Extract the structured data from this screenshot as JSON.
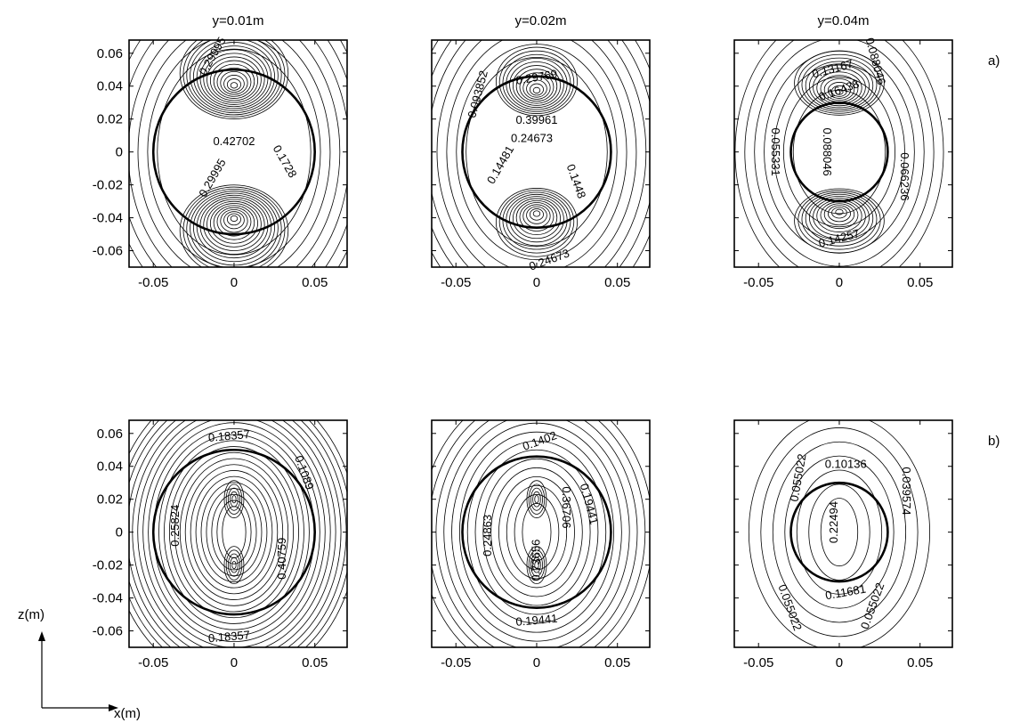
{
  "chart_data": {
    "type": "contour",
    "columns": [
      "y=0.01m",
      "y=0.02m",
      "y=0.04m"
    ],
    "rows": [
      "a)",
      "b)"
    ],
    "xlim": [
      -0.065,
      0.07
    ],
    "ylim": [
      -0.07,
      0.068
    ],
    "xticks": [
      -0.05,
      0,
      0.05
    ],
    "xtick_labels": [
      "-0.05",
      "0",
      "0.05"
    ],
    "yticks": [
      0.06,
      0.04,
      0.02,
      0,
      -0.02,
      -0.04,
      -0.06
    ],
    "ytick_labels": [
      "0.06",
      "0.04",
      "0.02",
      "0",
      "-0.02",
      "-0.04",
      "-0.06"
    ],
    "axis_labels": {
      "x": "x(m)",
      "z": "z(m)"
    },
    "panels": [
      {
        "row": 0,
        "col": 0,
        "circle": {
          "cx": 0,
          "cz": 0,
          "r": 0.05
        },
        "contour_labels": [
          {
            "text": "0.29995",
            "x": -0.013,
            "z": 0.058,
            "angle": -60
          },
          {
            "text": "0.42702",
            "x": 0.0,
            "z": 0.006,
            "angle": 0
          },
          {
            "text": "0.29995",
            "x": -0.013,
            "z": -0.016,
            "angle": -60
          },
          {
            "text": "0.1728",
            "x": 0.031,
            "z": -0.006,
            "angle": 60
          }
        ]
      },
      {
        "row": 0,
        "col": 1,
        "circle": {
          "cx": 0,
          "cz": 0,
          "r": 0.046
        },
        "contour_labels": [
          {
            "text": "0.29769",
            "x": 0.0,
            "z": 0.045,
            "angle": -10
          },
          {
            "text": "0.39961",
            "x": 0.0,
            "z": 0.019,
            "angle": 0
          },
          {
            "text": "0.24673",
            "x": -0.003,
            "z": 0.008,
            "angle": 0
          },
          {
            "text": "0.093852",
            "x": -0.036,
            "z": 0.035,
            "angle": -75
          },
          {
            "text": "0.14481",
            "x": -0.022,
            "z": -0.008,
            "angle": -60
          },
          {
            "text": "0.1448",
            "x": 0.024,
            "z": -0.018,
            "angle": 70
          },
          {
            "text": "0.24673",
            "x": 0.008,
            "z": -0.066,
            "angle": -20
          }
        ]
      },
      {
        "row": 0,
        "col": 2,
        "circle": {
          "cx": 0,
          "cz": 0,
          "r": 0.03
        },
        "contour_labels": [
          {
            "text": "0.13167",
            "x": -0.004,
            "z": 0.05,
            "angle": -15
          },
          {
            "text": "0.16438",
            "x": 0.0,
            "z": 0.037,
            "angle": -20
          },
          {
            "text": "0.088046",
            "x": 0.022,
            "z": 0.055,
            "angle": 75
          },
          {
            "text": "0.055331",
            "x": -0.04,
            "z": 0.0,
            "angle": 90
          },
          {
            "text": "0.088046",
            "x": -0.008,
            "z": 0.0,
            "angle": 90
          },
          {
            "text": "0.066236",
            "x": 0.04,
            "z": -0.015,
            "angle": 90
          },
          {
            "text": "0.14257",
            "x": 0.0,
            "z": -0.053,
            "angle": -15
          }
        ]
      },
      {
        "row": 1,
        "col": 0,
        "circle": {
          "cx": 0,
          "cz": 0,
          "r": 0.05
        },
        "contour_labels": [
          {
            "text": "0.18357",
            "x": -0.003,
            "z": 0.058,
            "angle": -5
          },
          {
            "text": "0.1089",
            "x": 0.043,
            "z": 0.036,
            "angle": 70
          },
          {
            "text": "0.25824",
            "x": -0.036,
            "z": 0.004,
            "angle": -90
          },
          {
            "text": "0.40759",
            "x": 0.03,
            "z": -0.016,
            "angle": -90
          },
          {
            "text": "0.18357",
            "x": -0.003,
            "z": -0.064,
            "angle": -5
          }
        ]
      },
      {
        "row": 1,
        "col": 1,
        "circle": {
          "cx": 0,
          "cz": 0,
          "r": 0.046
        },
        "contour_labels": [
          {
            "text": "0.1402",
            "x": 0.002,
            "z": 0.055,
            "angle": -20
          },
          {
            "text": "0.36706",
            "x": 0.018,
            "z": 0.015,
            "angle": 90
          },
          {
            "text": "0.19441",
            "x": 0.032,
            "z": 0.017,
            "angle": 75
          },
          {
            "text": "0.24863",
            "x": -0.03,
            "z": -0.002,
            "angle": -90
          },
          {
            "text": "0.73656",
            "x": 0.0,
            "z": -0.017,
            "angle": -90
          },
          {
            "text": "0.19441",
            "x": 0.0,
            "z": -0.054,
            "angle": -5
          }
        ]
      },
      {
        "row": 1,
        "col": 2,
        "circle": {
          "cx": 0,
          "cz": 0,
          "r": 0.03
        },
        "contour_labels": [
          {
            "text": "0.10136",
            "x": 0.004,
            "z": 0.041,
            "angle": 0
          },
          {
            "text": "0.055022",
            "x": -0.025,
            "z": 0.033,
            "angle": -80
          },
          {
            "text": "0.039574",
            "x": 0.041,
            "z": 0.025,
            "angle": 90
          },
          {
            "text": "0.22494",
            "x": -0.003,
            "z": 0.006,
            "angle": -90
          },
          {
            "text": "0.11681",
            "x": 0.004,
            "z": -0.037,
            "angle": -10
          },
          {
            "text": "0.055022",
            "x": -0.031,
            "z": -0.046,
            "angle": 70
          },
          {
            "text": "0.055022",
            "x": 0.021,
            "z": -0.045,
            "angle": -70
          }
        ]
      }
    ]
  }
}
